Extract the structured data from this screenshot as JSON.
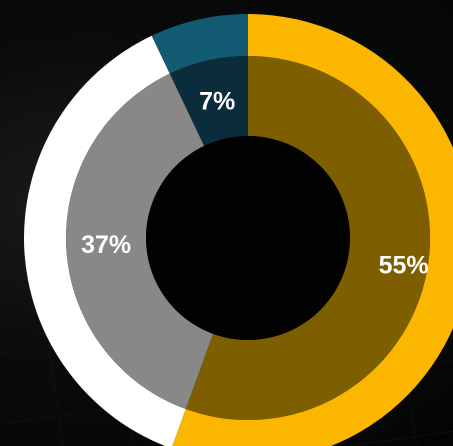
{
  "chart_data": {
    "type": "pie",
    "donut": true,
    "categories": [
      "",
      "",
      ""
    ],
    "values": [
      55,
      37,
      7
    ],
    "labels": [
      "55%",
      "37%",
      "7%"
    ],
    "colors": {
      "outer": [
        "#fbb600",
        "#ffffff",
        "#135a73"
      ],
      "inner": [
        "#7d5e00",
        "#888888",
        "#0b2c3a"
      ]
    },
    "title": "",
    "legend": "none"
  }
}
